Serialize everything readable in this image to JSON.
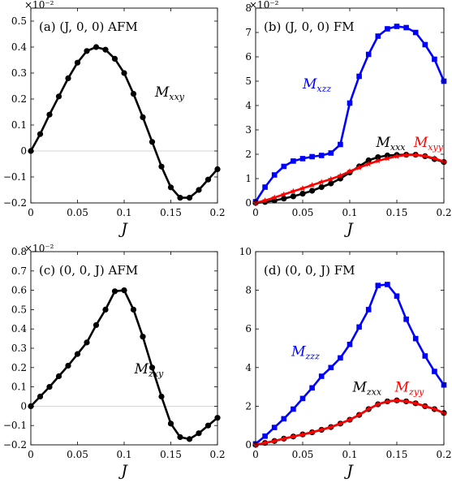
{
  "chart_data": [
    {
      "type": "line",
      "title": "(a)  (J, 0, 0) AFM",
      "xlabel": "J",
      "ylabel": "",
      "exponent_label": "×10⁻²",
      "xlim": [
        0,
        0.2
      ],
      "ylim": [
        -0.2,
        0.55
      ],
      "xticks": [
        0,
        0.05,
        0.1,
        0.15,
        0.2
      ],
      "xtick_labels": [
        "0",
        "0.05",
        "0.1",
        "0.15",
        "0.2"
      ],
      "yticks": [
        -0.2,
        -0.1,
        0,
        0.1,
        0.2,
        0.3,
        0.4,
        0.5
      ],
      "ytick_labels": [
        "−0.2",
        "−0.1",
        "0",
        "0.1",
        "0.2",
        "0.3",
        "0.4",
        "0.5"
      ],
      "zero_line": true,
      "series": [
        {
          "name": "M_xxy",
          "label_main": "M",
          "label_sub": "xxy",
          "label_at": [
            0.133,
            0.21
          ],
          "color": "#000000",
          "marker": "circle",
          "x": [
            0,
            0.01,
            0.02,
            0.03,
            0.04,
            0.05,
            0.06,
            0.07,
            0.08,
            0.09,
            0.1,
            0.11,
            0.12,
            0.13,
            0.14,
            0.15,
            0.16,
            0.17,
            0.18,
            0.19,
            0.2
          ],
          "y": [
            0,
            0.065,
            0.14,
            0.21,
            0.28,
            0.34,
            0.385,
            0.4,
            0.39,
            0.355,
            0.3,
            0.22,
            0.13,
            0.035,
            -0.06,
            -0.14,
            -0.18,
            -0.18,
            -0.15,
            -0.11,
            -0.07
          ]
        }
      ]
    },
    {
      "type": "line",
      "title": "(b)  (J, 0, 0) FM",
      "xlabel": "J",
      "ylabel": "",
      "exponent_label": "×10⁻²",
      "xlim": [
        0,
        0.2
      ],
      "ylim": [
        0,
        8
      ],
      "xticks": [
        0,
        0.05,
        0.1,
        0.15,
        0.2
      ],
      "xtick_labels": [
        "0",
        "0.05",
        "0.1",
        "0.15",
        "0.2"
      ],
      "yticks": [
        0,
        1,
        2,
        3,
        4,
        5,
        6,
        7,
        8
      ],
      "ytick_labels": [
        "0",
        "1",
        "2",
        "3",
        "4",
        "5",
        "6",
        "7",
        "8"
      ],
      "zero_line": false,
      "series": [
        {
          "name": "M_xzz",
          "label_main": "M",
          "label_sub": "xzz",
          "label_at": [
            0.05,
            4.7
          ],
          "color": "#0000ff",
          "marker": "square",
          "x": [
            0,
            0.01,
            0.02,
            0.03,
            0.04,
            0.05,
            0.06,
            0.07,
            0.08,
            0.09,
            0.1,
            0.11,
            0.12,
            0.13,
            0.14,
            0.15,
            0.16,
            0.17,
            0.18,
            0.19,
            0.2
          ],
          "y": [
            0.05,
            0.65,
            1.15,
            1.5,
            1.72,
            1.82,
            1.9,
            1.95,
            2.05,
            2.4,
            4.1,
            5.2,
            6.1,
            6.85,
            7.15,
            7.25,
            7.2,
            7.0,
            6.5,
            5.9,
            5.0
          ]
        },
        {
          "name": "M_xxx",
          "label_main": "M",
          "label_sub": "xxx",
          "label_at": [
            0.128,
            2.3
          ],
          "color": "#000000",
          "marker": "circle",
          "x": [
            0,
            0.01,
            0.02,
            0.03,
            0.04,
            0.05,
            0.06,
            0.07,
            0.08,
            0.09,
            0.1,
            0.11,
            0.12,
            0.13,
            0.14,
            0.15,
            0.16,
            0.17,
            0.18,
            0.19,
            0.2
          ],
          "y": [
            0,
            0.04,
            0.1,
            0.18,
            0.27,
            0.38,
            0.5,
            0.65,
            0.8,
            1.0,
            1.25,
            1.5,
            1.75,
            1.88,
            1.95,
            1.97,
            1.98,
            1.98,
            1.92,
            1.8,
            1.68
          ]
        },
        {
          "name": "M_xyy",
          "label_main": "M",
          "label_sub": "xyy",
          "label_at": [
            0.168,
            2.3
          ],
          "color": "#ff0000",
          "marker": "star",
          "x": [
            0,
            0.01,
            0.02,
            0.03,
            0.04,
            0.05,
            0.06,
            0.07,
            0.08,
            0.09,
            0.1,
            0.11,
            0.12,
            0.13,
            0.14,
            0.15,
            0.16,
            0.17,
            0.18,
            0.19,
            0.2
          ],
          "y": [
            0,
            0.1,
            0.22,
            0.35,
            0.48,
            0.6,
            0.73,
            0.86,
            0.98,
            1.12,
            1.3,
            1.45,
            1.6,
            1.73,
            1.83,
            1.92,
            1.97,
            1.97,
            1.93,
            1.83,
            1.7
          ]
        }
      ]
    },
    {
      "type": "line",
      "title": "(c)  (0, 0, J) AFM",
      "xlabel": "J",
      "ylabel": "",
      "exponent_label": "×10⁻²",
      "xlim": [
        0,
        0.2
      ],
      "ylim": [
        -0.2,
        0.8
      ],
      "xticks": [
        0,
        0.05,
        0.1,
        0.15,
        0.2
      ],
      "xtick_labels": [
        "0",
        "0.05",
        "0.1",
        "0.15",
        "0.2"
      ],
      "yticks": [
        -0.2,
        -0.1,
        0,
        0.1,
        0.2,
        0.3,
        0.4,
        0.5,
        0.6,
        0.7,
        0.8
      ],
      "ytick_labels": [
        "−0.2",
        "−0.1",
        "0",
        "0.1",
        "0.2",
        "0.3",
        "0.4",
        "0.5",
        "0.6",
        "0.7",
        "0.8"
      ],
      "zero_line": true,
      "series": [
        {
          "name": "M_zxy",
          "label_main": "M",
          "label_sub": "zxy",
          "label_at": [
            0.111,
            0.17
          ],
          "color": "#000000",
          "marker": "circle",
          "x": [
            0,
            0.01,
            0.02,
            0.03,
            0.04,
            0.05,
            0.06,
            0.07,
            0.08,
            0.09,
            0.1,
            0.11,
            0.12,
            0.13,
            0.14,
            0.15,
            0.16,
            0.17,
            0.18,
            0.19,
            0.2
          ],
          "y": [
            0,
            0.05,
            0.1,
            0.155,
            0.21,
            0.27,
            0.33,
            0.42,
            0.5,
            0.595,
            0.6,
            0.5,
            0.36,
            0.2,
            0.05,
            -0.09,
            -0.16,
            -0.17,
            -0.14,
            -0.1,
            -0.06
          ]
        }
      ]
    },
    {
      "type": "line",
      "title": "(d)  (0, 0, J) FM",
      "xlabel": "J",
      "ylabel": "",
      "exponent_label": "",
      "xlim": [
        0,
        0.2
      ],
      "ylim": [
        0,
        10
      ],
      "xticks": [
        0,
        0.05,
        0.1,
        0.15,
        0.2
      ],
      "xtick_labels": [
        "0",
        "0.05",
        "0.1",
        "0.15",
        "0.2"
      ],
      "yticks": [
        0,
        2,
        4,
        6,
        8,
        10
      ],
      "ytick_labels": [
        "0",
        "2",
        "4",
        "6",
        "8",
        "10"
      ],
      "zero_line": false,
      "series": [
        {
          "name": "M_zzz",
          "label_main": "M",
          "label_sub": "zzz",
          "label_at": [
            0.038,
            4.6
          ],
          "color": "#0000ff",
          "marker": "square",
          "x": [
            0,
            0.01,
            0.02,
            0.03,
            0.04,
            0.05,
            0.06,
            0.07,
            0.08,
            0.09,
            0.1,
            0.11,
            0.12,
            0.13,
            0.14,
            0.15,
            0.16,
            0.17,
            0.18,
            0.19,
            0.2
          ],
          "y": [
            0.05,
            0.45,
            0.9,
            1.35,
            1.85,
            2.4,
            2.95,
            3.55,
            4.0,
            4.5,
            5.2,
            6.1,
            7.0,
            8.25,
            8.3,
            7.7,
            6.5,
            5.5,
            4.6,
            3.8,
            3.1
          ]
        },
        {
          "name": "M_zxx",
          "label_main": "M",
          "label_sub": "zxx",
          "label_at": [
            0.103,
            2.75
          ],
          "color": "#000000",
          "marker": "circle",
          "x": [
            0,
            0.01,
            0.02,
            0.03,
            0.04,
            0.05,
            0.06,
            0.07,
            0.08,
            0.09,
            0.1,
            0.11,
            0.12,
            0.13,
            0.14,
            0.15,
            0.16,
            0.17,
            0.18,
            0.19,
            0.2
          ],
          "y": [
            0,
            0.1,
            0.2,
            0.32,
            0.43,
            0.54,
            0.65,
            0.78,
            0.92,
            1.1,
            1.3,
            1.55,
            1.85,
            2.1,
            2.25,
            2.3,
            2.25,
            2.15,
            2.0,
            1.85,
            1.65
          ]
        },
        {
          "name": "M_zyy",
          "label_main": "M",
          "label_sub": "zyy",
          "label_at": [
            0.148,
            2.75
          ],
          "color": "#ff0000",
          "marker": "star",
          "x": [
            0,
            0.01,
            0.02,
            0.03,
            0.04,
            0.05,
            0.06,
            0.07,
            0.08,
            0.09,
            0.1,
            0.11,
            0.12,
            0.13,
            0.14,
            0.15,
            0.16,
            0.17,
            0.18,
            0.19,
            0.2
          ],
          "y": [
            0,
            0.1,
            0.2,
            0.32,
            0.43,
            0.54,
            0.65,
            0.78,
            0.92,
            1.1,
            1.3,
            1.55,
            1.85,
            2.1,
            2.25,
            2.3,
            2.25,
            2.15,
            2.0,
            1.85,
            1.65
          ]
        }
      ]
    }
  ]
}
